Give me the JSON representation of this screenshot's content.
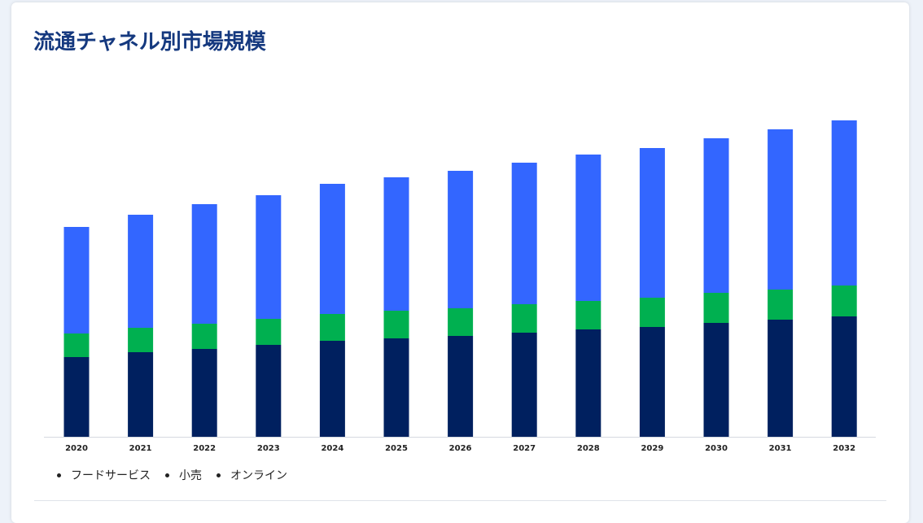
{
  "title": "流通チャネル別市場規模",
  "chart_data": {
    "type": "bar",
    "stacked": true,
    "categories": [
      "2020",
      "2021",
      "2022",
      "2023",
      "2024",
      "2025",
      "2026",
      "2027",
      "2028",
      "2029",
      "2030",
      "2031",
      "2032"
    ],
    "series": [
      {
        "name": "フードサービス",
        "color": "#00205f",
        "values": [
          98,
          104,
          108,
          113,
          118,
          121,
          124,
          128,
          132,
          135,
          140,
          144,
          148
        ]
      },
      {
        "name": "小売",
        "color": "#00b050",
        "values": [
          29,
          30,
          31,
          32,
          33,
          34,
          34,
          35,
          35,
          36,
          37,
          37,
          38
        ]
      },
      {
        "name": "オンライン",
        "color": "#3366ff",
        "values": [
          131,
          139,
          147,
          152,
          160,
          164,
          169,
          174,
          180,
          184,
          190,
          197,
          203
        ]
      }
    ],
    "ylim": [
      0,
      400
    ],
    "grid": false,
    "legend": "bottom-left"
  }
}
